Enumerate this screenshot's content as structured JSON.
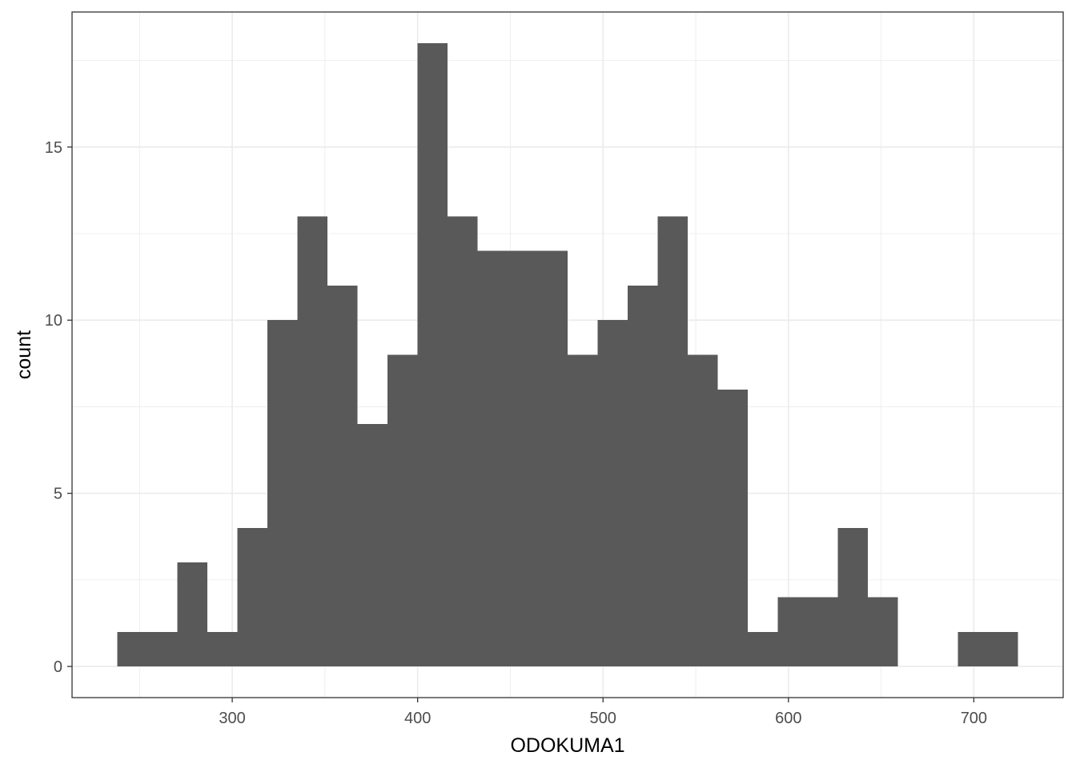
{
  "chart_data": {
    "type": "bar",
    "subtype": "histogram",
    "title": "",
    "xlabel": "ODOKUMA1",
    "ylabel": "count",
    "bin_width": 16.2,
    "bins": [
      {
        "start": 237.9,
        "end": 254.1,
        "count": 1
      },
      {
        "start": 254.1,
        "end": 270.3,
        "count": 1
      },
      {
        "start": 270.3,
        "end": 286.5,
        "count": 3
      },
      {
        "start": 286.5,
        "end": 302.7,
        "count": 1
      },
      {
        "start": 302.7,
        "end": 318.9,
        "count": 4
      },
      {
        "start": 318.9,
        "end": 335.1,
        "count": 10
      },
      {
        "start": 335.1,
        "end": 351.3,
        "count": 13
      },
      {
        "start": 351.3,
        "end": 367.5,
        "count": 11
      },
      {
        "start": 367.5,
        "end": 383.7,
        "count": 7
      },
      {
        "start": 383.7,
        "end": 399.9,
        "count": 9
      },
      {
        "start": 399.9,
        "end": 416.1,
        "count": 18
      },
      {
        "start": 416.1,
        "end": 432.3,
        "count": 13
      },
      {
        "start": 432.3,
        "end": 448.5,
        "count": 12
      },
      {
        "start": 448.5,
        "end": 464.7,
        "count": 12
      },
      {
        "start": 464.7,
        "end": 480.9,
        "count": 12
      },
      {
        "start": 480.9,
        "end": 497.1,
        "count": 9
      },
      {
        "start": 497.1,
        "end": 513.3,
        "count": 10
      },
      {
        "start": 513.3,
        "end": 529.5,
        "count": 11
      },
      {
        "start": 529.5,
        "end": 545.7,
        "count": 13
      },
      {
        "start": 545.7,
        "end": 561.9,
        "count": 9
      },
      {
        "start": 561.9,
        "end": 578.1,
        "count": 8
      },
      {
        "start": 578.1,
        "end": 594.3,
        "count": 1
      },
      {
        "start": 594.3,
        "end": 610.5,
        "count": 2
      },
      {
        "start": 610.5,
        "end": 626.7,
        "count": 2
      },
      {
        "start": 626.7,
        "end": 642.9,
        "count": 4
      },
      {
        "start": 642.9,
        "end": 659.1,
        "count": 2
      },
      {
        "start": 659.1,
        "end": 675.3,
        "count": 0
      },
      {
        "start": 675.3,
        "end": 691.5,
        "count": 0
      },
      {
        "start": 691.5,
        "end": 707.7,
        "count": 1
      },
      {
        "start": 707.7,
        "end": 723.9,
        "count": 1
      }
    ],
    "x_ticks": [
      300,
      400,
      500,
      600,
      700
    ],
    "x_tick_labels": [
      "300",
      "400",
      "500",
      "600",
      "700"
    ],
    "y_ticks": [
      0,
      5,
      10,
      15
    ],
    "y_tick_labels": [
      "0",
      "5",
      "10",
      "15"
    ],
    "xlim": [
      213.6,
      748.2
    ],
    "ylim": [
      -0.9,
      18.9
    ],
    "grid": true,
    "bar_color": "#595959",
    "grid_color": "#ebebeb",
    "panel_border_color": "#333333"
  }
}
